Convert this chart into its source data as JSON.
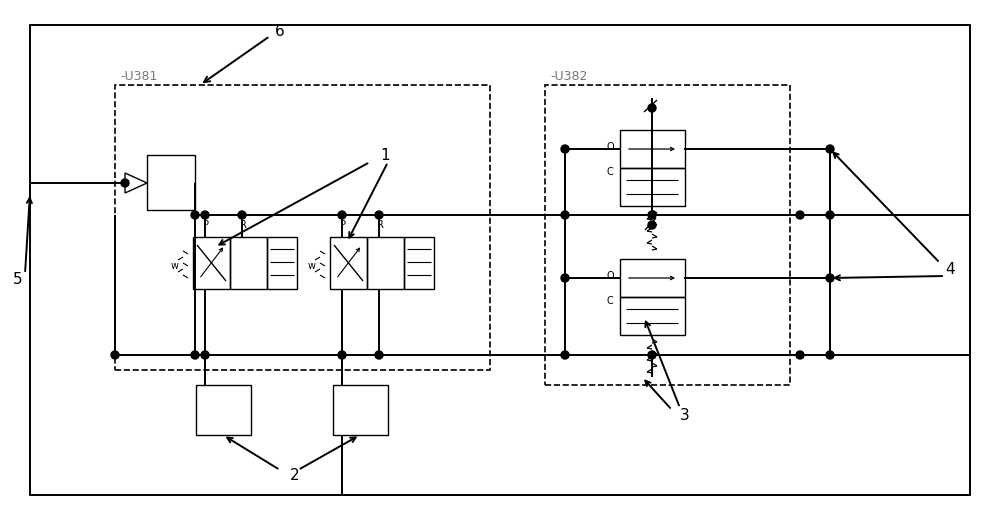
{
  "bg": "#ffffff",
  "lc": "#000000",
  "U381": "-U381",
  "U382": "-U382",
  "n1": "1",
  "n2": "2",
  "n3": "3",
  "n4": "4",
  "n5": "5",
  "n6": "6"
}
